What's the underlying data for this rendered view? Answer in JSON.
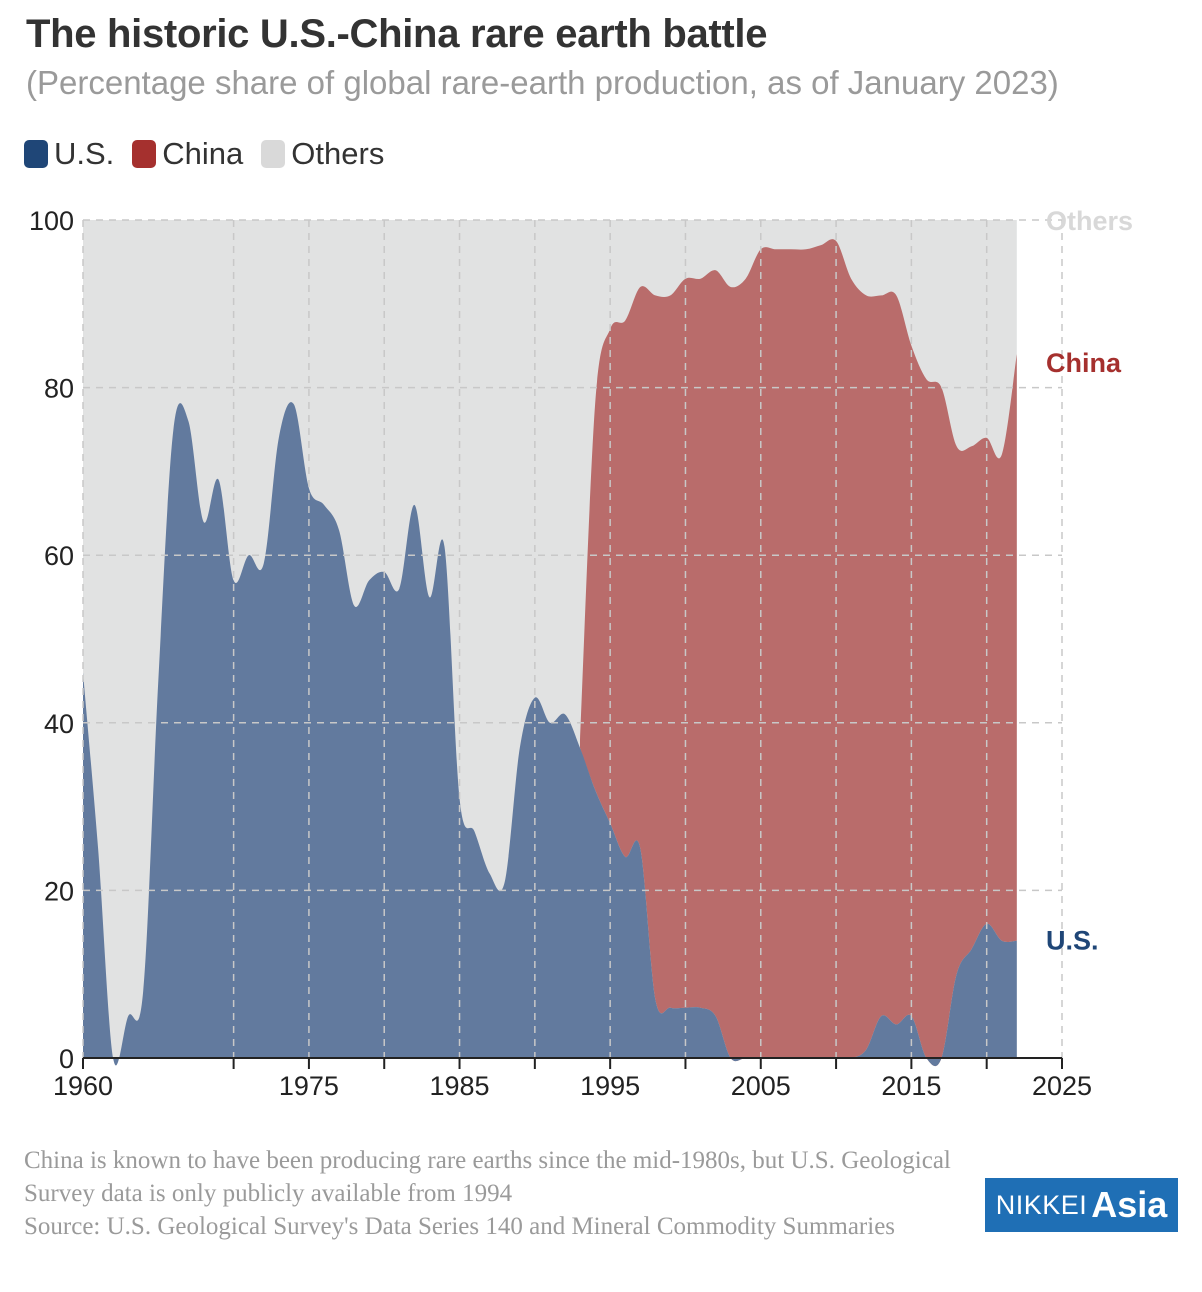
{
  "header": {
    "title": "The historic U.S.-China rare earth battle",
    "subtitle": "(Percentage share of global rare-earth production, as of January 2023)"
  },
  "legend": [
    {
      "label": "U.S.",
      "color": "#1f4677"
    },
    {
      "label": "China",
      "color": "#a5302e"
    },
    {
      "label": "Others",
      "color": "#d9d9d9"
    }
  ],
  "chart_data": {
    "type": "area",
    "stacked": true,
    "x_tick_labels": [
      "1960",
      "1975",
      "1985",
      "1995",
      "2005",
      "2015",
      "2025"
    ],
    "x_ticks": [
      1960,
      1970,
      1975,
      1980,
      1985,
      1990,
      1995,
      2000,
      2005,
      2010,
      2015,
      2020,
      2025
    ],
    "y_tick_labels": [
      "0",
      "20",
      "40",
      "60",
      "80",
      "100"
    ],
    "xlim": [
      1960,
      2025
    ],
    "ylim": [
      0,
      100
    ],
    "grid": true,
    "legend_position": "top-left",
    "end_labels": {
      "others": "Others",
      "china": "China",
      "us": "U.S."
    },
    "colors": {
      "us": "#627a9e",
      "china": "#b96c6b",
      "others": "#e1e2e2",
      "us_label": "#1f4677",
      "china_label": "#a5302e",
      "others_label": "#d8d8d8"
    },
    "x": [
      1960,
      1961,
      1962,
      1963,
      1964,
      1965,
      1966,
      1967,
      1968,
      1969,
      1970,
      1971,
      1972,
      1973,
      1974,
      1975,
      1976,
      1977,
      1978,
      1979,
      1980,
      1981,
      1982,
      1983,
      1984,
      1985,
      1986,
      1987,
      1988,
      1989,
      1990,
      1991,
      1992,
      1993,
      1994,
      1995,
      1996,
      1997,
      1998,
      1999,
      2000,
      2001,
      2002,
      2003,
      2004,
      2005,
      2006,
      2007,
      2008,
      2009,
      2010,
      2011,
      2012,
      2013,
      2014,
      2015,
      2016,
      2017,
      2018,
      2019,
      2020,
      2021,
      2022
    ],
    "series": [
      {
        "name": "U.S.",
        "values": [
          46,
          25,
          0,
          5,
          8,
          45,
          75,
          76,
          64,
          69,
          57,
          60,
          59,
          74,
          78,
          68,
          66,
          63,
          54,
          57,
          58,
          56,
          66,
          55,
          61,
          31,
          27,
          22,
          21,
          37,
          43,
          40,
          41,
          37,
          32,
          28,
          24,
          25,
          7,
          6,
          6,
          6,
          5,
          0,
          0,
          0,
          0,
          0,
          0,
          0,
          0,
          0,
          1,
          5,
          4,
          5,
          0,
          0,
          10,
          13,
          16,
          14,
          14
        ]
      },
      {
        "name": "China",
        "values": [
          null,
          null,
          null,
          null,
          null,
          null,
          null,
          null,
          null,
          null,
          null,
          null,
          null,
          null,
          null,
          null,
          null,
          null,
          null,
          null,
          null,
          null,
          null,
          null,
          null,
          null,
          null,
          null,
          null,
          null,
          null,
          null,
          null,
          1,
          46,
          59,
          64,
          67,
          84,
          85,
          87,
          87,
          89,
          92,
          93,
          96.5,
          96.5,
          96.5,
          96.5,
          97,
          97.5,
          93,
          90,
          86,
          87,
          80,
          81,
          80,
          63,
          60,
          58,
          58,
          70
        ]
      }
    ]
  },
  "footnote": {
    "line1": "China is known to have been producing rare earths since the mid-1980s, but U.S. Geological Survey data is only publicly available from 1994",
    "line2": "Source: U.S. Geological Survey's Data Series 140 and Mineral Commodity Summaries"
  },
  "logo": {
    "part1": "NIKKEI",
    "part2": "Asia"
  }
}
